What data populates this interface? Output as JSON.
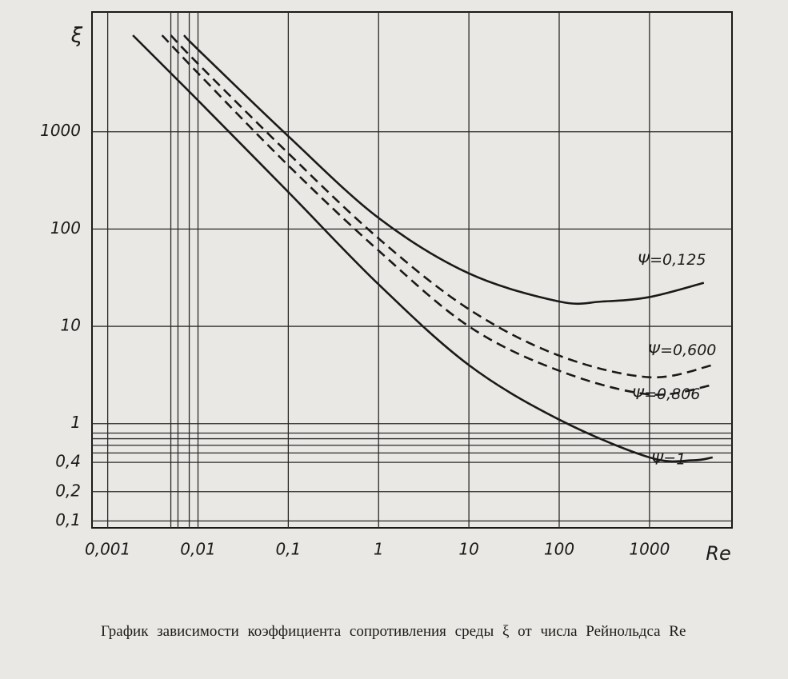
{
  "chart_data": {
    "type": "line",
    "ylabel": "ξ",
    "xlabel": "Re",
    "caption": "График зависимости коэффициента сопротивления среды ξ от числа Рейнольдса Re",
    "xscale": "log",
    "yscale": "log",
    "grid": true,
    "xlim": [
      0.00067,
      8200
    ],
    "ylim": [
      0.085,
      17000
    ],
    "xticks": [
      {
        "value": 0.001,
        "label": "0,001"
      },
      {
        "value": 0.01,
        "label": "0,01"
      },
      {
        "value": 0.1,
        "label": "0,1"
      },
      1,
      10,
      100,
      1000
    ],
    "minor_xticks": [
      0.005,
      0.006,
      0.008
    ],
    "yticks": [
      {
        "value": 0.1,
        "label": "0,1"
      },
      {
        "value": 0.2,
        "label": "0,2"
      },
      {
        "value": 0.4,
        "label": "0,4"
      },
      1,
      10,
      100,
      1000
    ],
    "minor_yticks": [
      0.8,
      0.7,
      0.6,
      0.5
    ],
    "series": [
      {
        "name": "Ψ=0,125",
        "color": "#1a1a1a",
        "dashed": false,
        "x": [
          0.007,
          0.01,
          0.1,
          1,
          10,
          100,
          300,
          1000,
          4000
        ],
        "values": [
          9800,
          7000,
          900,
          130,
          35,
          18,
          18,
          20,
          28
        ]
      },
      {
        "name": "Ψ=0,600",
        "color": "#1a1a1a",
        "dashed": true,
        "x": [
          0.005,
          0.01,
          0.1,
          1,
          10,
          100,
          1000,
          5000
        ],
        "values": [
          9800,
          5000,
          600,
          80,
          15,
          5,
          3,
          4
        ]
      },
      {
        "name": "Ψ=0,806",
        "color": "#1a1a1a",
        "dashed": true,
        "x": [
          0.004,
          0.01,
          0.1,
          1,
          10,
          100,
          1000,
          5000
        ],
        "values": [
          9800,
          4000,
          450,
          60,
          10,
          3.5,
          2,
          2.5
        ]
      },
      {
        "name": "Ψ=1",
        "color": "#1a1a1a",
        "dashed": false,
        "x": [
          0.0019,
          0.01,
          0.1,
          1,
          10,
          100,
          1000,
          3000,
          5000
        ],
        "values": [
          9800,
          2100,
          240,
          27,
          4,
          1.1,
          0.45,
          0.42,
          0.45
        ]
      }
    ]
  }
}
